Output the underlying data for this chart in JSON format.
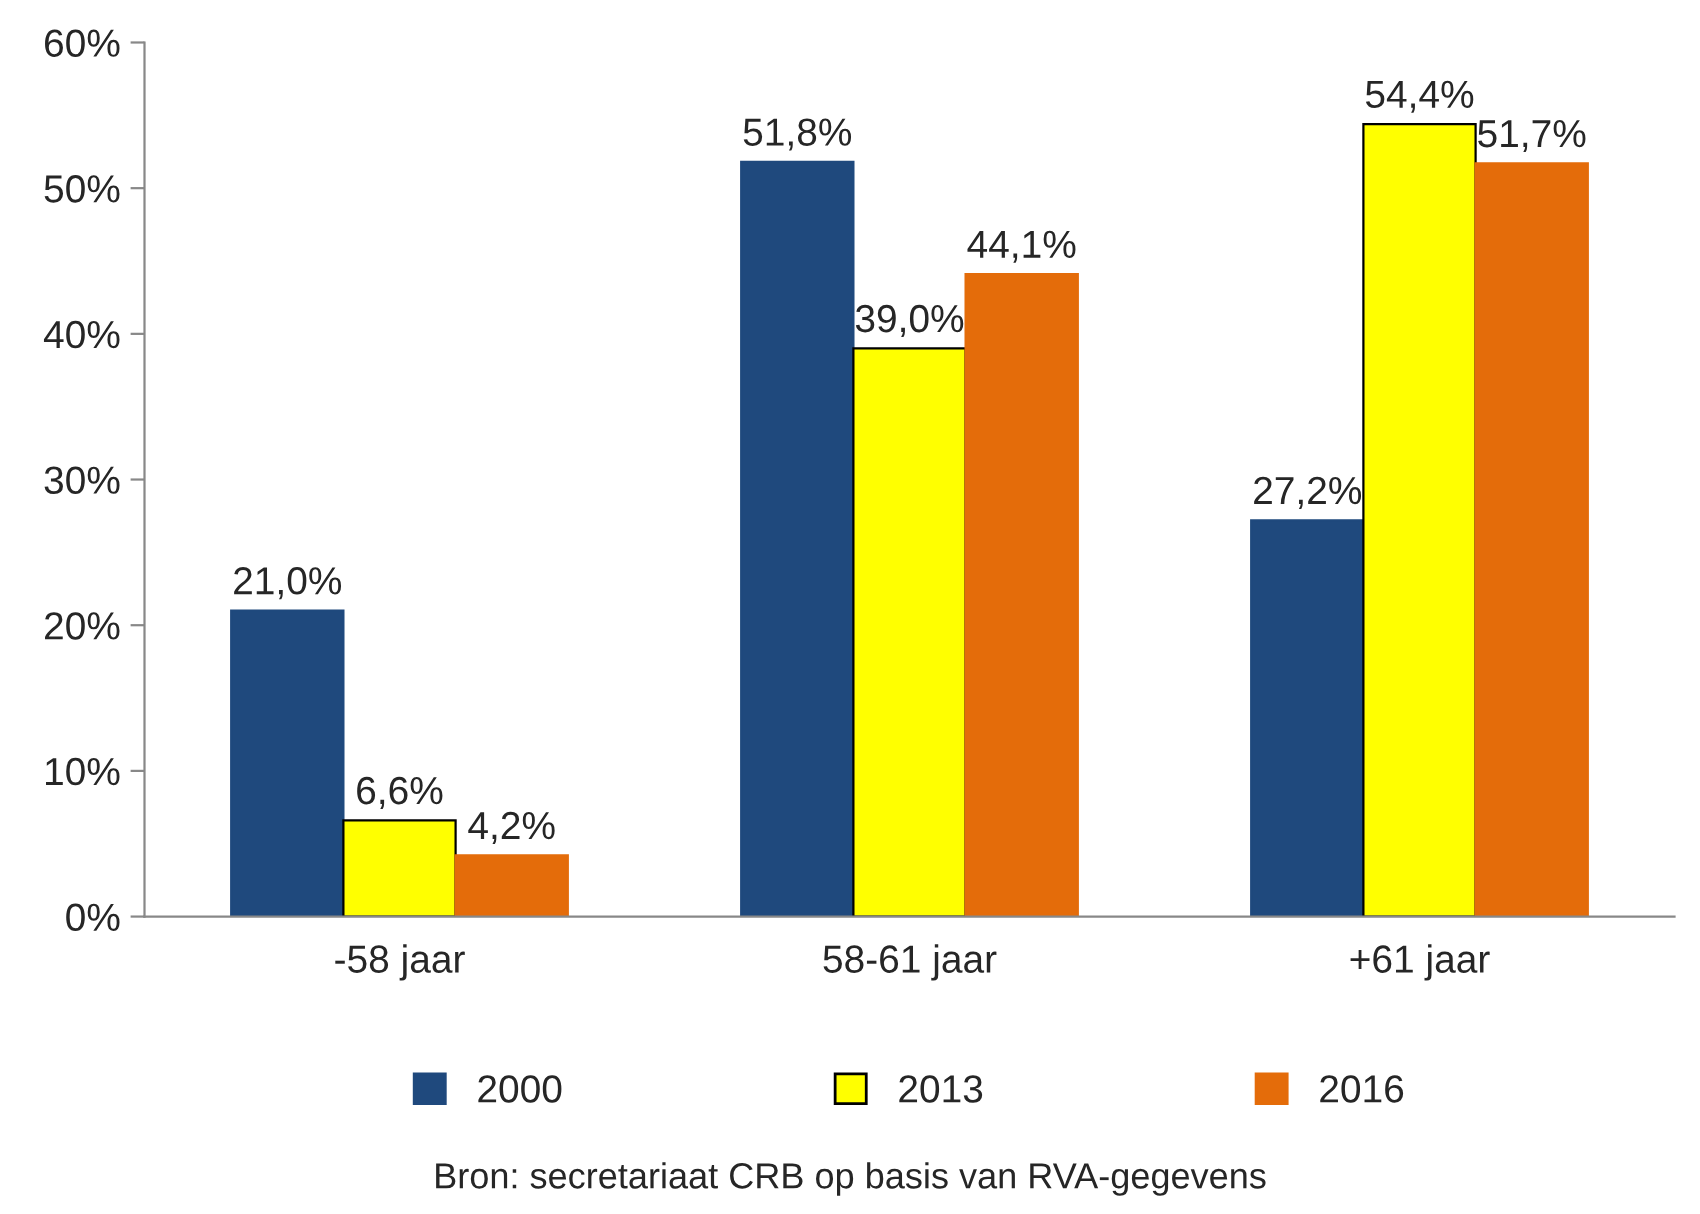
{
  "chart_data": {
    "type": "bar",
    "categories": [
      "-58 jaar",
      "58-61 jaar",
      "+61 jaar"
    ],
    "series": [
      {
        "name": "2000",
        "color": "#1f497d",
        "values": [
          21.0,
          51.8,
          27.2
        ],
        "value_labels": [
          "21,0%",
          "51,8%",
          "27,2%"
        ]
      },
      {
        "name": "2013",
        "color": "#ffff00",
        "values": [
          6.6,
          39.0,
          54.4
        ],
        "value_labels": [
          "6,6%",
          "39,0%",
          "54,4%"
        ]
      },
      {
        "name": "2016",
        "color": "#e46c0a",
        "values": [
          4.2,
          44.1,
          51.7
        ],
        "value_labels": [
          "4,2%",
          "44,1%",
          "51,7%"
        ]
      }
    ],
    "ylim": [
      0,
      60
    ],
    "yticks": [
      {
        "value": 0,
        "label": "0%"
      },
      {
        "value": 10,
        "label": "10%"
      },
      {
        "value": 20,
        "label": "20%"
      },
      {
        "value": 30,
        "label": "30%"
      },
      {
        "value": 40,
        "label": "40%"
      },
      {
        "value": 50,
        "label": "50%"
      },
      {
        "value": 60,
        "label": "60%"
      }
    ],
    "grid": false,
    "legend": "bottom",
    "annotations": [
      "Bron: secretariaat CRB op basis van RVA-gegevens"
    ]
  }
}
